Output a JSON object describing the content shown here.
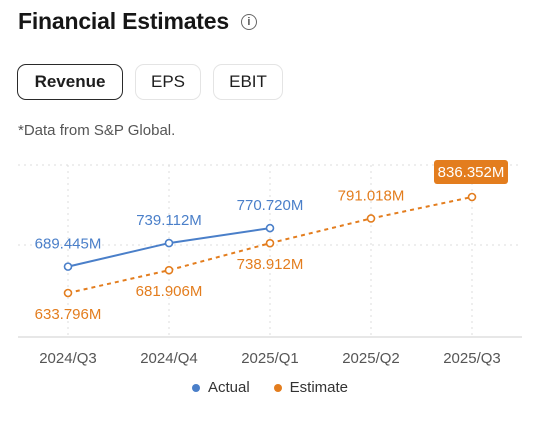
{
  "header": {
    "title": "Financial Estimates",
    "info_icon": "info-icon"
  },
  "tabs": [
    {
      "label": "Revenue",
      "active": true
    },
    {
      "label": "EPS",
      "active": false
    },
    {
      "label": "EBIT",
      "active": false
    }
  ],
  "note": "*Data from S&P Global.",
  "colors": {
    "actual": "#4a7fc9",
    "estimate": "#e37d1e",
    "grid": "#dcdcdc"
  },
  "chart_data": {
    "type": "line",
    "categories": [
      "2024/Q3",
      "2024/Q4",
      "2025/Q1",
      "2025/Q2",
      "2025/Q3"
    ],
    "series": [
      {
        "name": "Actual",
        "values": [
          689.445,
          739.112,
          770.72,
          null,
          null
        ],
        "labels": [
          "689.445M",
          "739.112M",
          "770.720M",
          "",
          ""
        ],
        "style": "solid"
      },
      {
        "name": "Estimate",
        "values": [
          633.796,
          681.906,
          738.912,
          791.018,
          836.352
        ],
        "labels": [
          "633.796M",
          "681.906M",
          "738.912M",
          "791.018M",
          "836.352M"
        ],
        "style": "dashed"
      }
    ],
    "highlight_label": "836.352M",
    "unit": "M",
    "grid": true,
    "legend": "bottom"
  }
}
